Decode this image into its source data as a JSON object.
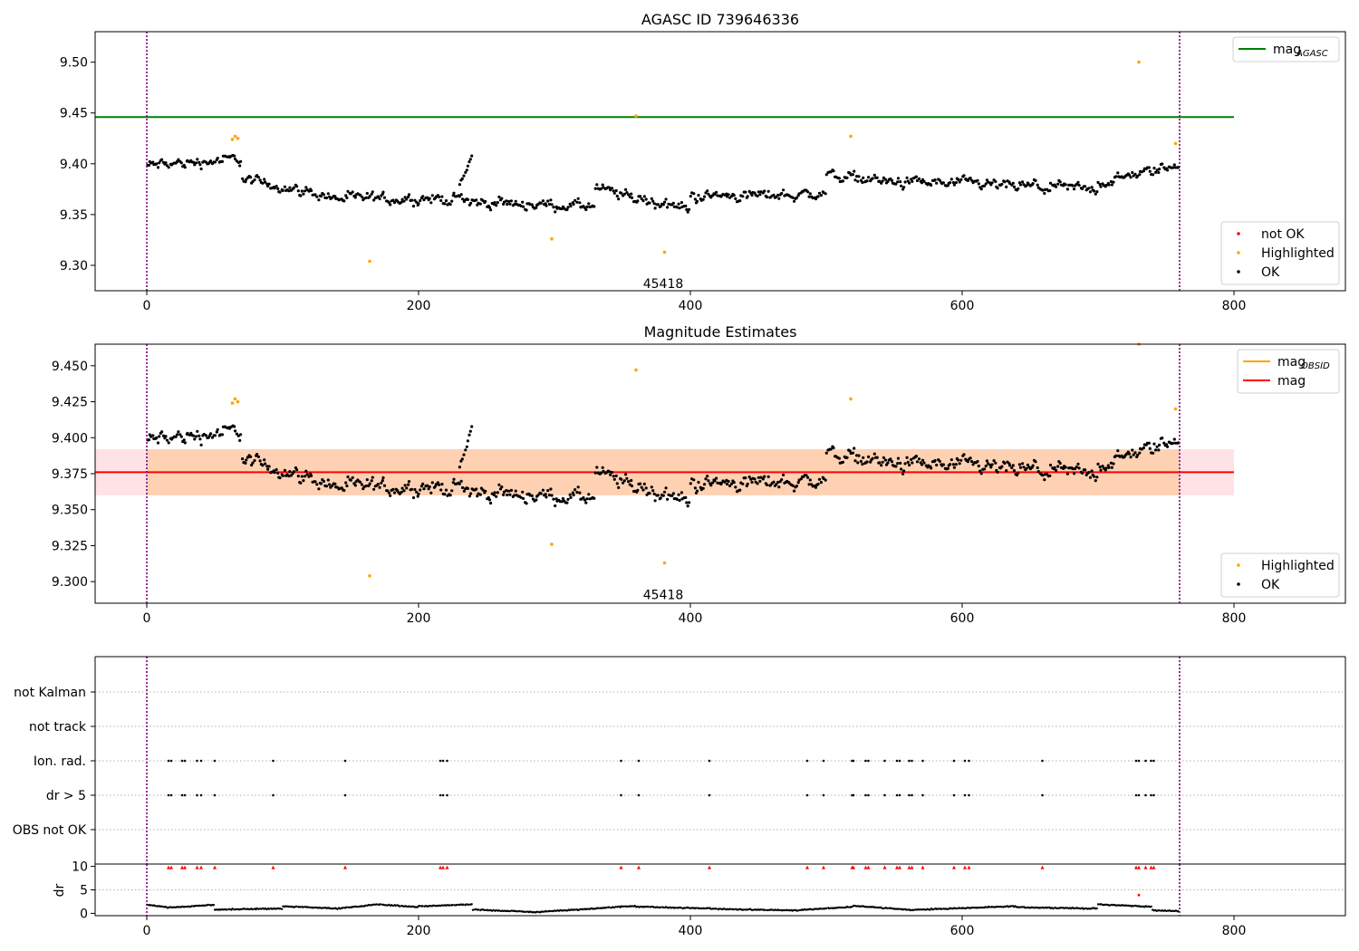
{
  "figure": {
    "background": "#ffffff",
    "colors": {
      "ok": "#000000",
      "highlighted": "#ffa500",
      "not_ok": "#ff0000",
      "agasc_line": "#008000",
      "mag_line": "#ff0000",
      "obsid_line": "#ffa500",
      "vline": "#800080",
      "band_inner": "#ffbf80",
      "band_outer": "#ffb6c1"
    }
  },
  "chart_data": [
    {
      "id": "top",
      "type": "scatter",
      "title": "AGASC ID 739646336",
      "xlim": [
        -38,
        882
      ],
      "ylim": [
        9.275,
        9.53
      ],
      "xticks": [
        0,
        200,
        400,
        600,
        800
      ],
      "xtick_labels": [
        "0",
        "200",
        "400",
        "600",
        "800"
      ],
      "yticks": [
        9.3,
        9.35,
        9.4,
        9.45,
        9.5
      ],
      "ytick_labels": [
        "9.30",
        "9.35",
        "9.40",
        "9.45",
        "9.50"
      ],
      "vlines": [
        0,
        760
      ],
      "hlines": [
        {
          "name": "mag_AGASC",
          "y": 9.446,
          "x0": -38,
          "x1": 800,
          "color": "#008000"
        }
      ],
      "annotations": [
        {
          "text": "45418",
          "x": 380,
          "y": 9.282
        }
      ],
      "legends": [
        {
          "position": "top-right",
          "entries": [
            {
              "label": "mag",
              "sub": "AGASC",
              "kind": "line",
              "color": "#008000"
            }
          ]
        },
        {
          "position": "bottom-right",
          "entries": [
            {
              "label": "not OK",
              "kind": "dot",
              "color": "#ff0000"
            },
            {
              "label": "Highlighted",
              "kind": "dot",
              "color": "#ffa500"
            },
            {
              "label": "OK",
              "kind": "dot",
              "color": "#000000"
            }
          ]
        }
      ],
      "series": [
        {
          "name": "Highlighted",
          "color": "#ffa500",
          "points": [
            [
              63,
              9.424
            ],
            [
              65,
              9.427
            ],
            [
              67,
              9.425
            ],
            [
              164,
              9.304
            ],
            [
              298,
              9.326
            ],
            [
              360,
              9.447
            ],
            [
              381,
              9.313
            ],
            [
              518,
              9.427
            ],
            [
              730,
              9.5
            ],
            [
              757,
              9.42
            ]
          ]
        },
        {
          "name": "OK",
          "color": "#000000",
          "segments": [
            {
              "x": [
                0,
                70
              ],
              "y": [
                9.398,
                9.405
              ],
              "wiggle": 0.013
            },
            {
              "x": [
                70,
                135
              ],
              "y": [
                9.385,
                9.368
              ],
              "wiggle": 0.012
            },
            {
              "x": [
                135,
                240
              ],
              "y": [
                9.366,
                9.365
              ],
              "wiggle": 0.013
            },
            {
              "x": [
                230,
                240
              ],
              "y": [
                9.38,
                9.41
              ],
              "wiggle": 0.006
            },
            {
              "x": [
                240,
                330
              ],
              "y": [
                9.362,
                9.358
              ],
              "wiggle": 0.012
            },
            {
              "x": [
                330,
                400
              ],
              "y": [
                9.375,
                9.355
              ],
              "wiggle": 0.014
            },
            {
              "x": [
                400,
                500
              ],
              "y": [
                9.368,
                9.37
              ],
              "wiggle": 0.013
            },
            {
              "x": [
                500,
                560
              ],
              "y": [
                9.39,
                9.38
              ],
              "wiggle": 0.013
            },
            {
              "x": [
                560,
                700
              ],
              "y": [
                9.382,
                9.375
              ],
              "wiggle": 0.013
            },
            {
              "x": [
                700,
                760
              ],
              "y": [
                9.38,
                9.4
              ],
              "wiggle": 0.012
            }
          ]
        }
      ]
    },
    {
      "id": "middle",
      "type": "scatter",
      "title": "Magnitude Estimates",
      "xlim": [
        -38,
        882
      ],
      "ylim": [
        9.285,
        9.465
      ],
      "xticks": [
        0,
        200,
        400,
        600,
        800
      ],
      "xtick_labels": [
        "0",
        "200",
        "400",
        "600",
        "800"
      ],
      "yticks": [
        9.3,
        9.325,
        9.35,
        9.375,
        9.4,
        9.425,
        9.45
      ],
      "ytick_labels": [
        "9.300",
        "9.325",
        "9.350",
        "9.375",
        "9.400",
        "9.425",
        "9.450"
      ],
      "vlines": [
        0,
        760
      ],
      "hlines": [
        {
          "name": "mag",
          "y": 9.376,
          "x0": -38,
          "x1": 800,
          "color": "#ff0000"
        }
      ],
      "bands": [
        {
          "y0": 9.36,
          "y1": 9.392,
          "x0": -38,
          "x1": 800,
          "color": "#ffb6c1",
          "opacity": 0.4
        },
        {
          "y0": 9.36,
          "y1": 9.392,
          "x0": 0,
          "x1": 760,
          "color": "#ffbf80",
          "opacity": 0.5
        }
      ],
      "annotations": [
        {
          "text": "45418",
          "x": 380,
          "y": 9.291
        }
      ],
      "legends": [
        {
          "position": "top-right",
          "entries": [
            {
              "label": "mag",
              "sub": "OBSID",
              "kind": "line",
              "color": "#ffa500"
            },
            {
              "label": "mag",
              "kind": "line",
              "color": "#ff0000"
            }
          ]
        },
        {
          "position": "bottom-right",
          "entries": [
            {
              "label": "Highlighted",
              "kind": "dot",
              "color": "#ffa500"
            },
            {
              "label": "OK",
              "kind": "dot",
              "color": "#000000"
            }
          ]
        }
      ],
      "series": [
        {
          "name": "Highlighted",
          "color": "#ffa500",
          "points": [
            [
              63,
              9.424
            ],
            [
              65,
              9.427
            ],
            [
              67,
              9.425
            ],
            [
              164,
              9.304
            ],
            [
              298,
              9.326
            ],
            [
              360,
              9.447
            ],
            [
              381,
              9.313
            ],
            [
              518,
              9.427
            ],
            [
              730,
              9.465
            ],
            [
              757,
              9.42
            ]
          ]
        },
        {
          "name": "OK",
          "color": "#000000",
          "segments": [
            {
              "x": [
                0,
                70
              ],
              "y": [
                9.398,
                9.405
              ],
              "wiggle": 0.013
            },
            {
              "x": [
                70,
                135
              ],
              "y": [
                9.385,
                9.368
              ],
              "wiggle": 0.012
            },
            {
              "x": [
                135,
                240
              ],
              "y": [
                9.366,
                9.365
              ],
              "wiggle": 0.013
            },
            {
              "x": [
                230,
                240
              ],
              "y": [
                9.38,
                9.41
              ],
              "wiggle": 0.006
            },
            {
              "x": [
                240,
                330
              ],
              "y": [
                9.362,
                9.358
              ],
              "wiggle": 0.012
            },
            {
              "x": [
                330,
                400
              ],
              "y": [
                9.375,
                9.355
              ],
              "wiggle": 0.014
            },
            {
              "x": [
                400,
                500
              ],
              "y": [
                9.368,
                9.37
              ],
              "wiggle": 0.013
            },
            {
              "x": [
                500,
                560
              ],
              "y": [
                9.39,
                9.38
              ],
              "wiggle": 0.013
            },
            {
              "x": [
                560,
                700
              ],
              "y": [
                9.382,
                9.375
              ],
              "wiggle": 0.013
            },
            {
              "x": [
                700,
                760
              ],
              "y": [
                9.38,
                9.4
              ],
              "wiggle": 0.012
            }
          ]
        }
      ]
    },
    {
      "id": "flags",
      "type": "scatter",
      "title": "",
      "xlim": [
        -38,
        882
      ],
      "categories": [
        "not Kalman",
        "not track",
        "Ion. rad.",
        "dr > 5",
        "OBS not OK"
      ],
      "vlines": [
        0,
        760
      ],
      "series": [
        {
          "name": "Ion. rad.",
          "color": "#000000",
          "x": [
            16,
            18,
            26,
            28,
            37,
            40,
            50,
            93,
            146,
            216,
            218,
            221,
            349,
            362,
            414,
            486,
            498,
            519,
            520,
            529,
            531,
            543,
            552,
            554,
            561,
            563,
            571,
            594,
            602,
            605,
            659,
            728,
            730,
            735,
            739,
            741
          ]
        },
        {
          "name": "dr > 5",
          "color": "#000000",
          "x": [
            16,
            18,
            26,
            28,
            37,
            40,
            50,
            93,
            146,
            216,
            218,
            221,
            349,
            362,
            414,
            486,
            498,
            519,
            520,
            529,
            531,
            543,
            552,
            554,
            561,
            563,
            571,
            594,
            602,
            605,
            659,
            728,
            730,
            735,
            739,
            741
          ]
        }
      ]
    },
    {
      "id": "dr",
      "type": "scatter",
      "title": "",
      "ylabel": "dr",
      "xlim": [
        -38,
        882
      ],
      "ylim": [
        -0.5,
        10.5
      ],
      "xticks": [
        0,
        200,
        400,
        600,
        800
      ],
      "xtick_labels": [
        "0",
        "200",
        "400",
        "600",
        "800"
      ],
      "yticks": [
        0,
        5,
        10
      ],
      "ytick_labels": [
        "0",
        "5",
        "10"
      ],
      "vlines": [
        0,
        760
      ],
      "series": [
        {
          "name": "dr > 5 (clipped)",
          "color": "#ff0000",
          "y": 9.8,
          "x": [
            16,
            18,
            26,
            28,
            37,
            40,
            50,
            93,
            146,
            216,
            218,
            221,
            349,
            362,
            414,
            486,
            498,
            519,
            520,
            529,
            531,
            543,
            552,
            554,
            561,
            563,
            571,
            594,
            602,
            605,
            659,
            728,
            730,
            735,
            739,
            741
          ]
        },
        {
          "name": "dr outlier",
          "color": "#ff0000",
          "points": [
            [
              730,
              3.9
            ]
          ]
        },
        {
          "name": "dr",
          "color": "#000000",
          "segments": [
            {
              "x": [
                0,
                15
              ],
              "y": [
                1.8,
                1.3
              ]
            },
            {
              "x": [
                15,
                50
              ],
              "y": [
                1.2,
                1.8
              ]
            },
            {
              "x": [
                50,
                100
              ],
              "y": [
                0.8,
                1.0
              ]
            },
            {
              "x": [
                100,
                140
              ],
              "y": [
                1.5,
                1.0
              ]
            },
            {
              "x": [
                140,
                170
              ],
              "y": [
                1.0,
                1.9
              ]
            },
            {
              "x": [
                170,
                200
              ],
              "y": [
                1.9,
                1.3
              ]
            },
            {
              "x": [
                200,
                240
              ],
              "y": [
                1.5,
                1.9
              ]
            },
            {
              "x": [
                240,
                290
              ],
              "y": [
                0.8,
                0.2
              ]
            },
            {
              "x": [
                290,
                360
              ],
              "y": [
                0.3,
                1.6
              ]
            },
            {
              "x": [
                360,
                420
              ],
              "y": [
                1.4,
                1.0
              ]
            },
            {
              "x": [
                420,
                480
              ],
              "y": [
                0.9,
                0.6
              ]
            },
            {
              "x": [
                480,
                520
              ],
              "y": [
                0.7,
                1.4
              ]
            },
            {
              "x": [
                520,
                560
              ],
              "y": [
                1.6,
                0.8
              ]
            },
            {
              "x": [
                560,
                640
              ],
              "y": [
                0.7,
                1.5
              ]
            },
            {
              "x": [
                640,
                700
              ],
              "y": [
                1.3,
                1.0
              ]
            },
            {
              "x": [
                700,
                740
              ],
              "y": [
                1.9,
                1.4
              ]
            },
            {
              "x": [
                740,
                760
              ],
              "y": [
                0.6,
                0.5
              ]
            }
          ]
        }
      ]
    }
  ]
}
